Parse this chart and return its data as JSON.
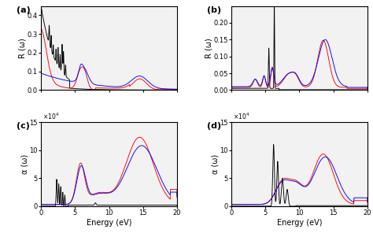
{
  "fig_width": 4.74,
  "fig_height": 3.01,
  "dpi": 100,
  "panels": [
    "(a)",
    "(b)",
    "(c)",
    "(d)"
  ],
  "colors": {
    "black": "#000000",
    "red": "#ff0000",
    "blue": "#0000ff"
  },
  "ylabel_top": "R (ω)",
  "ylabel_bottom": "α (ω)",
  "xlabel": "Energy (eV)",
  "xlim": [
    0,
    20
  ],
  "ylim_a": [
    0,
    0.45
  ],
  "ylim_b": [
    0,
    0.25
  ],
  "ylim_cd": [
    0,
    15
  ],
  "yticks_a": [
    0,
    0.1,
    0.2,
    0.3,
    0.4
  ],
  "yticks_b": [
    0,
    0.05,
    0.1,
    0.15,
    0.2
  ],
  "yticks_cd": [
    0,
    5,
    10,
    15
  ],
  "xticks": [
    0,
    5,
    10,
    15,
    20
  ],
  "background": "#f2f2f2",
  "linewidth": 0.65
}
